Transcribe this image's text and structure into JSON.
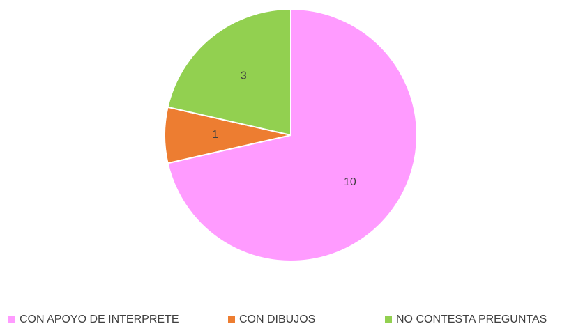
{
  "chart_data": {
    "type": "pie",
    "categories": [
      "CON APOYO DE INTERPRETE",
      "CON DIBUJOS",
      "NO CONTESTA PREGUNTAS"
    ],
    "values": [
      10,
      1,
      3
    ],
    "colors": [
      "#ff9bff",
      "#ed7d31",
      "#92d050"
    ],
    "legend": "bottom"
  }
}
